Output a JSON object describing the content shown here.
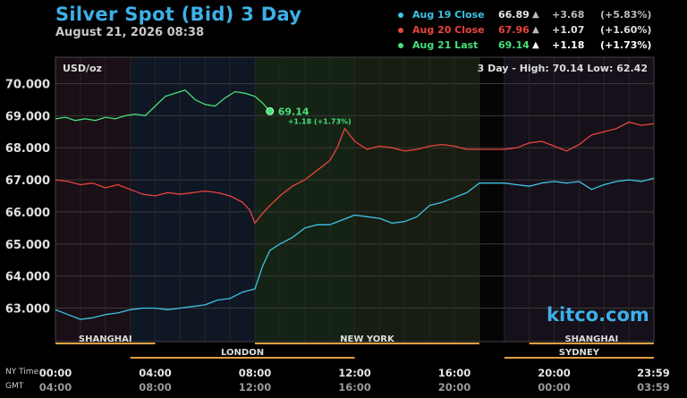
{
  "header": {
    "title": "Silver Spot (Bid) 3 Day",
    "timestamp": "August 21, 2026 08:38"
  },
  "legend": [
    {
      "label": "Aug 19 Close",
      "value": "66.89",
      "arrow": "▲",
      "change": "+3.68",
      "pct": "(+5.83%)",
      "color": "#3ec4e6",
      "label_color": "#3ec4e6",
      "value_color": "#e6e6e6",
      "chg_color": "#bbbbbb"
    },
    {
      "label": "Aug 20 Close",
      "value": "67.96",
      "arrow": "▲",
      "change": "+1.07",
      "pct": "(+1.60%)",
      "color": "#e8453c",
      "label_color": "#e8453c",
      "value_color": "#e8453c",
      "chg_color": "#e6e6e6"
    },
    {
      "label": "Aug 21 Last",
      "value": "69.14",
      "arrow": "▲",
      "change": "+1.18",
      "pct": "(+1.73%)",
      "color": "#46e07a",
      "label_color": "#46e07a",
      "value_color": "#46e07a",
      "chg_color": "#ffffff"
    }
  ],
  "chart_header": {
    "unit": "USD/oz",
    "range_text": "3 Day - High: 70.14  Low: 62.42"
  },
  "last_marker": {
    "value_label": "69.14",
    "change_label": "+1.18 (+1.73%)"
  },
  "watermark": "kitco.com",
  "footer": {
    "ny_label": "NY Time",
    "gmt_label": "GMT"
  },
  "sessions": {
    "row1": [
      {
        "name": "SHANGHAI",
        "start": 0,
        "end": 4
      },
      {
        "name": "NEW YORK",
        "start": 8,
        "end": 17
      },
      {
        "name": "SHANGHAI",
        "start": 19,
        "end": 24
      }
    ],
    "row2": [
      {
        "name": "LONDON",
        "start": 3,
        "end": 12
      },
      {
        "name": "SYDNEY",
        "start": 18,
        "end": 24
      }
    ]
  },
  "chart_data": {
    "type": "line",
    "ylabel": "USD/oz",
    "ylim": [
      62.0,
      70.5
    ],
    "xlim": [
      0,
      24
    ],
    "yticks": [
      "70.000",
      "69.000",
      "68.000",
      "67.000",
      "66.000",
      "65.000",
      "64.000",
      "63.000"
    ],
    "ytick_values": [
      70,
      69,
      68,
      67,
      66,
      65,
      64,
      63
    ],
    "xticks_ny": [
      "00:00",
      "04:00",
      "08:00",
      "12:00",
      "16:00",
      "20:00",
      "23:59"
    ],
    "xticks_gmt": [
      "04:00",
      "08:00",
      "12:00",
      "16:00",
      "20:00",
      "00:00",
      "03:59"
    ],
    "xtick_hours": [
      0,
      4,
      8,
      12,
      16,
      20,
      23.98
    ],
    "series": [
      {
        "name": "Aug 19",
        "color": "#3ec4e6",
        "x": [
          0,
          0.5,
          1,
          1.5,
          2,
          2.5,
          3,
          3.5,
          4,
          4.5,
          5,
          5.5,
          6,
          6.5,
          7,
          7.5,
          8,
          8.3,
          8.6,
          9,
          9.5,
          10,
          10.5,
          11,
          11.5,
          12,
          12.5,
          13,
          13.5,
          14,
          14.5,
          15,
          15.5,
          16,
          16.5,
          17,
          17.5,
          18,
          18.5,
          19,
          19.5,
          20,
          20.5,
          21,
          21.5,
          22,
          22.5,
          23,
          23.5,
          24
        ],
        "y": [
          62.95,
          62.8,
          62.65,
          62.7,
          62.8,
          62.85,
          62.95,
          63.0,
          63.0,
          62.95,
          63.0,
          63.05,
          63.1,
          63.25,
          63.3,
          63.5,
          63.6,
          64.3,
          64.8,
          65.0,
          65.2,
          65.5,
          65.6,
          65.6,
          65.75,
          65.9,
          65.85,
          65.8,
          65.65,
          65.7,
          65.85,
          66.2,
          66.3,
          66.45,
          66.6,
          66.9,
          66.9,
          66.9,
          66.85,
          66.8,
          66.9,
          66.95,
          66.9,
          66.95,
          66.7,
          66.85,
          66.95,
          67.0,
          66.95,
          67.05
        ]
      },
      {
        "name": "Aug 20",
        "color": "#e8453c",
        "x": [
          0,
          0.5,
          1,
          1.5,
          2,
          2.5,
          3,
          3.5,
          4,
          4.5,
          5,
          5.5,
          6,
          6.5,
          7,
          7.5,
          7.8,
          8,
          8.3,
          8.6,
          9,
          9.5,
          10,
          10.5,
          11,
          11.3,
          11.6,
          12,
          12.5,
          13,
          13.5,
          14,
          14.5,
          15,
          15.5,
          16,
          16.5,
          17,
          17.5,
          18,
          18.5,
          19,
          19.5,
          20,
          20.5,
          21,
          21.5,
          22,
          22.5,
          23,
          23.5,
          24
        ],
        "y": [
          67.0,
          66.95,
          66.85,
          66.9,
          66.75,
          66.85,
          66.7,
          66.55,
          66.5,
          66.6,
          66.55,
          66.6,
          66.65,
          66.6,
          66.5,
          66.3,
          66.05,
          65.65,
          65.95,
          66.2,
          66.5,
          66.8,
          67.0,
          67.3,
          67.6,
          68.0,
          68.6,
          68.2,
          67.95,
          68.05,
          68.0,
          67.9,
          67.95,
          68.05,
          68.1,
          68.05,
          67.95,
          67.95,
          67.95,
          67.95,
          68.0,
          68.15,
          68.2,
          68.05,
          67.9,
          68.1,
          68.4,
          68.5,
          68.6,
          68.8,
          68.7,
          68.75
        ]
      },
      {
        "name": "Aug 21",
        "color": "#46e07a",
        "x": [
          0,
          0.4,
          0.8,
          1.2,
          1.6,
          2,
          2.4,
          2.8,
          3.2,
          3.6,
          4,
          4.4,
          4.8,
          5.2,
          5.6,
          6,
          6.4,
          6.8,
          7.2,
          7.6,
          8,
          8.3,
          8.6
        ],
        "y": [
          68.9,
          68.95,
          68.85,
          68.9,
          68.85,
          68.95,
          68.9,
          69.0,
          69.05,
          69.0,
          69.3,
          69.6,
          69.7,
          69.8,
          69.5,
          69.35,
          69.3,
          69.55,
          69.75,
          69.7,
          69.6,
          69.4,
          69.14
        ]
      }
    ]
  }
}
